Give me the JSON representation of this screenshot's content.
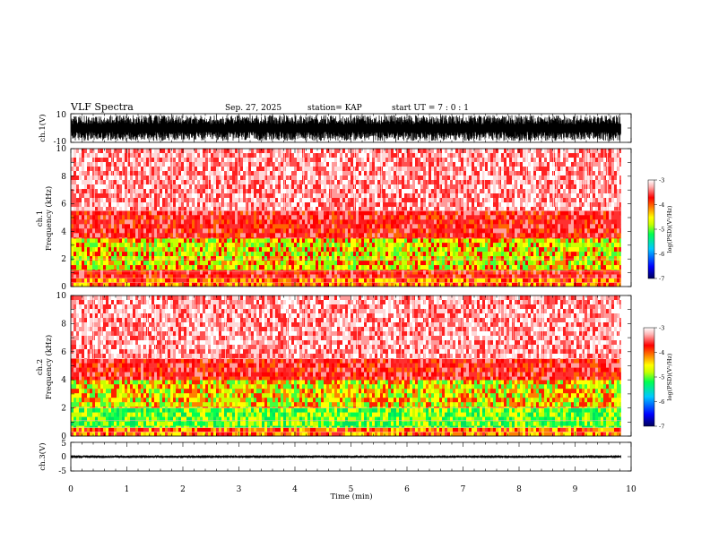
{
  "header": {
    "title": "VLF Spectra",
    "date": "Sep. 27, 2025",
    "station": "station= KAP",
    "start": "start  UT  =   7 : 0  : 1"
  },
  "colors": {
    "waveform": "#000000",
    "cmap": [
      "#00005a",
      "#0000ff",
      "#00c8ff",
      "#00ff50",
      "#c8ff00",
      "#ffff00",
      "#ff8000",
      "#ff0000",
      "#ffd0d0",
      "#ffffff"
    ]
  },
  "chart_data": [
    {
      "type": "line",
      "id": "ch1-waveform",
      "ylabel": "ch.1(V)",
      "yticks": [
        "10",
        "-10"
      ],
      "ylim": [
        -10,
        10
      ],
      "xlim": [
        0,
        10
      ],
      "data_end_min": 9.82,
      "amplitude_range_v": [
        -9,
        9
      ]
    },
    {
      "type": "heatmap",
      "id": "ch1-spectrogram",
      "ylabel": "ch.1\nFrequency (kHz)",
      "yticks": [
        "0",
        "2",
        "4",
        "6",
        "8",
        "10"
      ],
      "ylim": [
        0,
        10
      ],
      "xlim": [
        0,
        10
      ],
      "data_end_min": 9.82,
      "colorbar": {
        "label": "log(PSD)(V²/Hz)",
        "ticks": [
          "-3",
          "-4",
          "-5",
          "-6",
          "-7"
        ],
        "range": [
          -7,
          -3
        ]
      },
      "bands_khz": [
        {
          "from": 0,
          "to": 0.6,
          "level": "red-yellow"
        },
        {
          "from": 0.6,
          "to": 1.2,
          "level": "red"
        },
        {
          "from": 1.2,
          "to": 3.5,
          "level": "green-yellow"
        },
        {
          "from": 3.5,
          "to": 5.5,
          "level": "red"
        },
        {
          "from": 5.5,
          "to": 10,
          "level": "light-red"
        }
      ]
    },
    {
      "type": "heatmap",
      "id": "ch2-spectrogram",
      "ylabel": "ch.2\nFrequency (kHz)",
      "yticks": [
        "0",
        "2",
        "4",
        "6",
        "8",
        "10"
      ],
      "ylim": [
        0,
        10
      ],
      "xlim": [
        0,
        10
      ],
      "data_end_min": 9.82,
      "colorbar": {
        "label": "log(PSD)(V²/Hz)",
        "ticks": [
          "-3",
          "-4",
          "-5",
          "-6",
          "-7"
        ],
        "range": [
          -7,
          -3
        ]
      },
      "bands_khz": [
        {
          "from": 0,
          "to": 0.6,
          "level": "red-yellow"
        },
        {
          "from": 0.6,
          "to": 2.0,
          "level": "green"
        },
        {
          "from": 2.0,
          "to": 4.0,
          "level": "yellow-orange"
        },
        {
          "from": 4.0,
          "to": 5.5,
          "level": "red"
        },
        {
          "from": 5.5,
          "to": 10,
          "level": "light-red"
        }
      ]
    },
    {
      "type": "line",
      "id": "ch3-waveform",
      "ylabel": "ch.3(V)",
      "yticks": [
        "5",
        "0",
        "-5"
      ],
      "ylim": [
        -5,
        5
      ],
      "xlim": [
        0,
        10
      ],
      "data_end_min": 9.82,
      "amplitude_range_v": [
        -0.5,
        0.5
      ]
    }
  ],
  "xaxis": {
    "label": "Time (min)",
    "ticks": [
      "0",
      "1",
      "2",
      "3",
      "4",
      "5",
      "6",
      "7",
      "8",
      "9",
      "10"
    ]
  }
}
